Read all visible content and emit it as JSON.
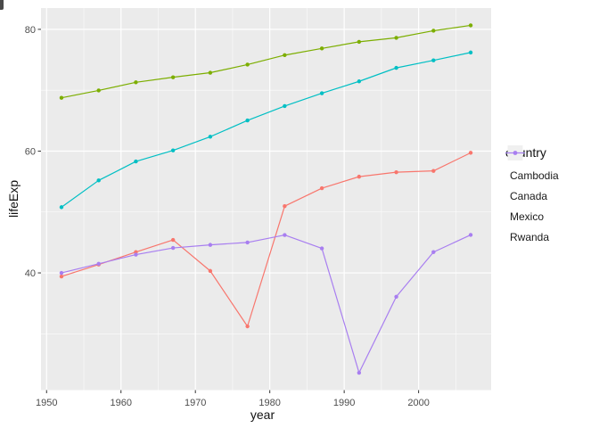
{
  "chart_data": {
    "type": "line",
    "title": "",
    "xlabel": "year",
    "ylabel": "lifeExp",
    "legend_title": "country",
    "legend_position": "right",
    "x": [
      1952,
      1957,
      1962,
      1967,
      1972,
      1977,
      1982,
      1987,
      1992,
      1997,
      2002,
      2007
    ],
    "series": [
      {
        "name": "Cambodia",
        "color": "#F8766D",
        "values": [
          39.417,
          41.366,
          43.415,
          45.415,
          40.317,
          31.22,
          50.957,
          53.914,
          55.803,
          56.534,
          56.752,
          59.723
        ]
      },
      {
        "name": "Canada",
        "color": "#7CAE00",
        "values": [
          68.75,
          69.96,
          71.3,
          72.13,
          72.88,
          74.21,
          75.76,
          76.86,
          77.95,
          78.61,
          79.77,
          80.653
        ]
      },
      {
        "name": "Mexico",
        "color": "#00BFC4",
        "values": [
          50.789,
          55.19,
          58.299,
          60.11,
          62.361,
          65.032,
          67.405,
          69.498,
          71.455,
          73.67,
          74.902,
          76.195
        ]
      },
      {
        "name": "Rwanda",
        "color": "#A87EF0",
        "values": [
          40.0,
          41.5,
          43.0,
          44.1,
          44.6,
          45.0,
          46.218,
          44.02,
          23.599,
          36.087,
          43.413,
          46.242
        ]
      }
    ],
    "xlim": [
      1949.25,
      2009.75
    ],
    "ylim": [
      20.75,
      83.5
    ],
    "x_ticks": [
      1950,
      1960,
      1970,
      1980,
      1990,
      2000
    ],
    "y_ticks": [
      40,
      60,
      80
    ],
    "x_minor_ticks": [
      1955,
      1965,
      1975,
      1985,
      1995,
      2005
    ],
    "y_minor_ticks": [
      30,
      50,
      70
    ],
    "grid": true
  },
  "style": {
    "background": "#FFFFFF",
    "panel_bg": "#EBEBEB",
    "grid_major_color": "#FFFFFF",
    "grid_minor_color": "#FFFFFF",
    "tick_label_color": "#4D4D4D",
    "tick_mark_color": "#333333",
    "axis_title_color": "#111111",
    "legend_key_bg": "#F0F0F0"
  }
}
